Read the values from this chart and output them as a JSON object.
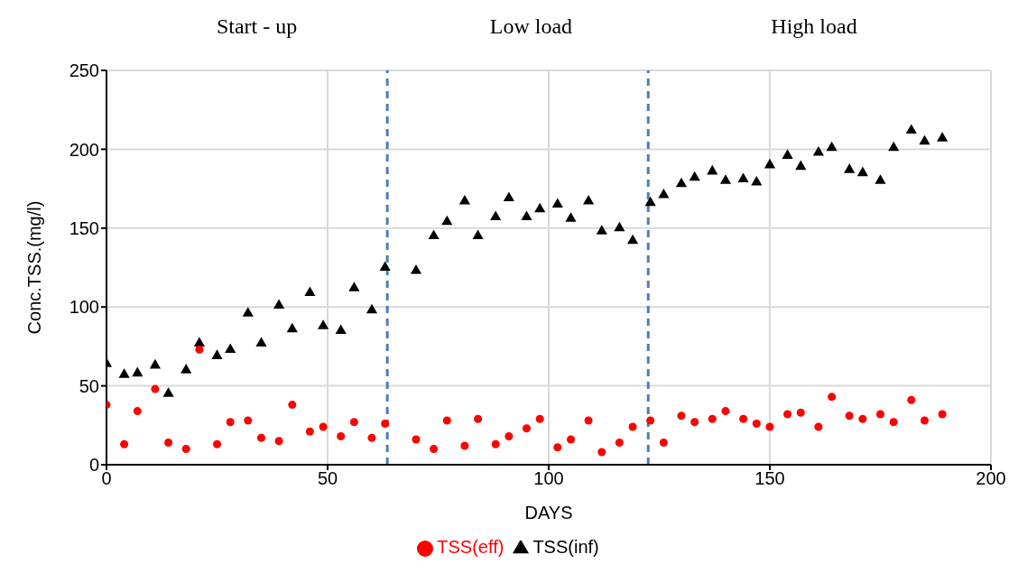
{
  "chart_data": {
    "type": "scatter",
    "xlabel": "DAYS",
    "ylabel": "Conc.TSS.(mg/l)",
    "annotations": [
      "Start - up",
      "Low load",
      "High load"
    ],
    "x": [
      0,
      4,
      7,
      11,
      14,
      18,
      21,
      25,
      28,
      32,
      35,
      39,
      42,
      46,
      49,
      53,
      56,
      60,
      63,
      70,
      74,
      77,
      81,
      84,
      88,
      91,
      95,
      98,
      102,
      105,
      109,
      112,
      116,
      119,
      123,
      126,
      130,
      133,
      137,
      140,
      144,
      147,
      150,
      154,
      157,
      161,
      164,
      168,
      171,
      175,
      178,
      182,
      185,
      189
    ],
    "series": [
      {
        "name": "TSS(inf)",
        "color": "#000000",
        "marker": "triangle",
        "values": [
          64,
          57,
          58,
          63,
          45,
          60,
          77,
          69,
          73,
          96,
          77,
          101,
          86,
          109,
          88,
          85,
          112,
          98,
          125,
          123,
          145,
          154,
          167,
          145,
          157,
          169,
          157,
          162,
          165,
          156,
          167,
          148,
          150,
          142,
          166,
          171,
          178,
          182,
          186,
          180,
          181,
          179,
          190,
          196,
          189,
          198,
          201,
          187,
          185,
          180,
          201,
          212,
          205,
          207
        ]
      },
      {
        "name": "TSS(eff)",
        "color": "#ff0000",
        "marker": "circle",
        "values": [
          38,
          13,
          34,
          48,
          14,
          10,
          73,
          13,
          27,
          28,
          17,
          15,
          38,
          21,
          24,
          18,
          27,
          17,
          26,
          16,
          10,
          28,
          12,
          29,
          13,
          18,
          23,
          29,
          11,
          16,
          28,
          8,
          14,
          24,
          28,
          14,
          31,
          27,
          29,
          34,
          29,
          26,
          24,
          32,
          33,
          24,
          43,
          31,
          29,
          32,
          27,
          41,
          28,
          32
        ]
      }
    ],
    "xlim": [
      0,
      200
    ],
    "xticks": [
      0,
      50,
      100,
      150,
      200
    ],
    "ylim": [
      0,
      250
    ],
    "yticks": [
      0,
      50,
      100,
      150,
      200,
      250
    ],
    "grid": true,
    "legend": "bottom",
    "ref_lines": [
      {
        "axis": "x",
        "value": 63.5,
        "color": "#4a7ebb",
        "line_style": "dashed"
      },
      {
        "axis": "x",
        "value": 122.5,
        "color": "#4a7ebb",
        "line_style": "dashed"
      }
    ]
  }
}
